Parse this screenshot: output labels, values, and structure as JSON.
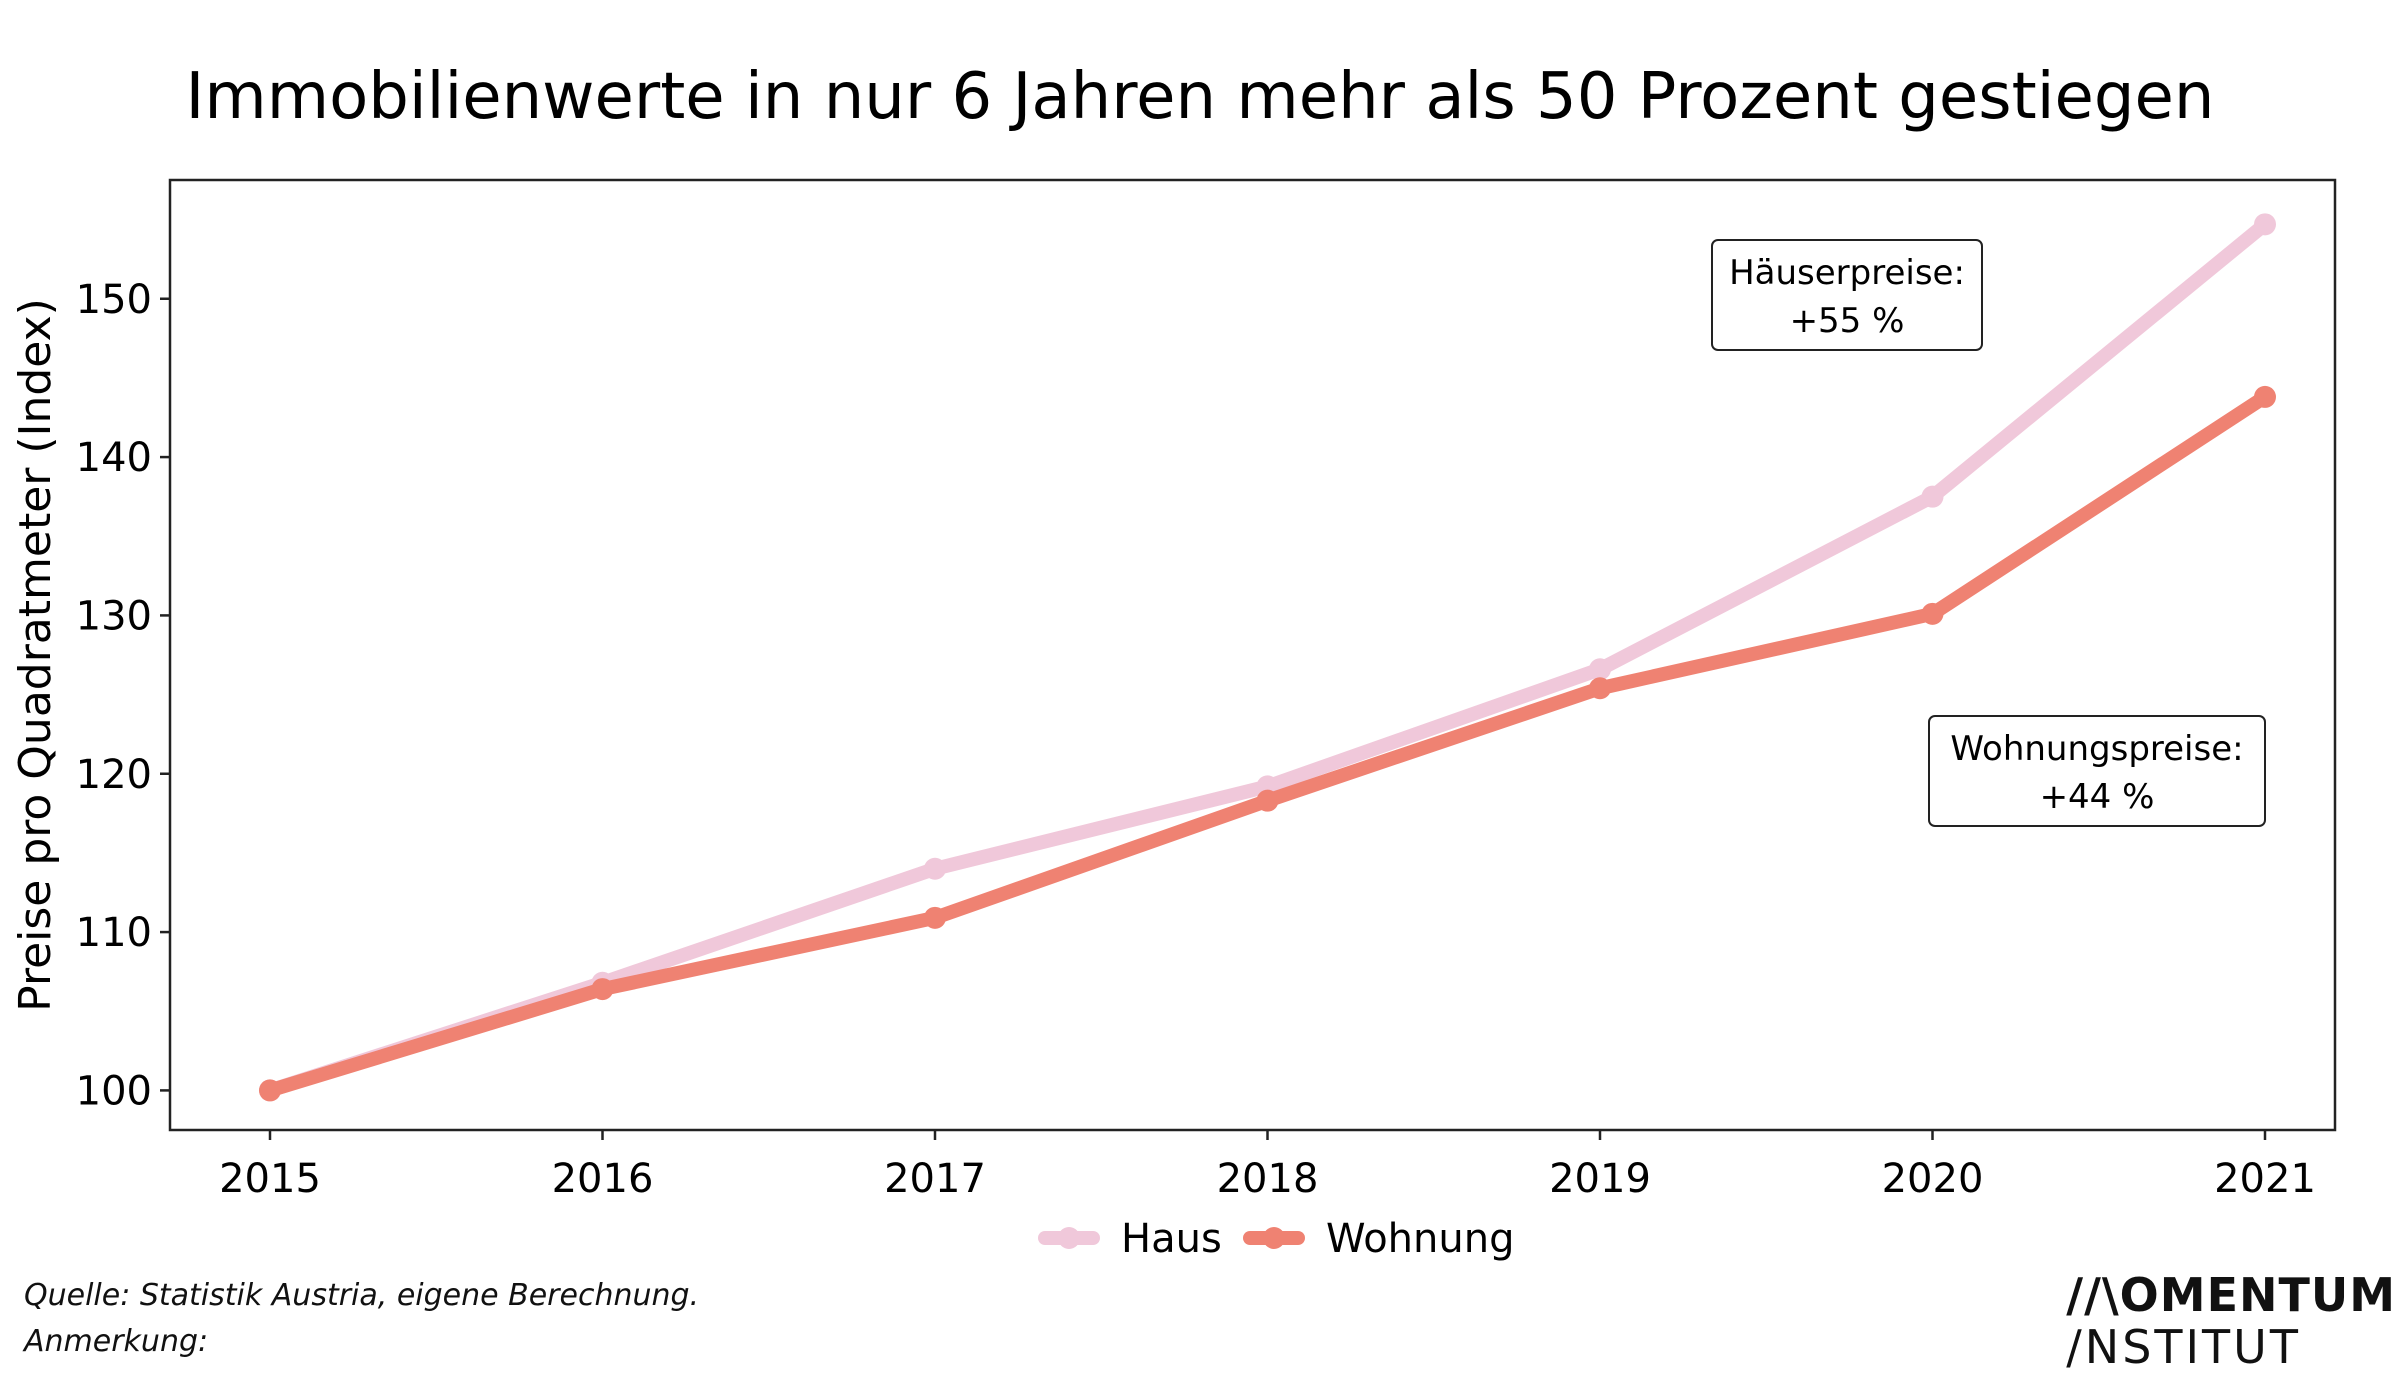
{
  "colors": {
    "haus": "#f0c8da",
    "wohnung": "#ef8272",
    "frame": "#222222",
    "background": "#ffffff"
  },
  "chart_data": {
    "type": "line",
    "title": "Immobilienwerte in nur 6 Jahren mehr als 50 Prozent gestiegen",
    "xlabel": "",
    "ylabel": "Preise pro Quadratmeter (Index)",
    "x": [
      "2015",
      "2016",
      "2017",
      "2018",
      "2019",
      "2020",
      "2021"
    ],
    "y_ticks": [
      100,
      110,
      120,
      130,
      140,
      150
    ],
    "ylim": [
      97.5,
      157.5
    ],
    "grid": false,
    "legend_position": "bottom-center",
    "series": [
      {
        "name": "Haus",
        "color": "#f0c8da",
        "values": [
          100,
          106.8,
          114.0,
          119.2,
          126.6,
          137.5,
          154.7
        ]
      },
      {
        "name": "Wohnung",
        "color": "#ef8272",
        "values": [
          100,
          106.4,
          110.9,
          118.3,
          125.4,
          130.1,
          143.8
        ]
      }
    ],
    "annotations": [
      {
        "lines": [
          "Häuserpreise:",
          "+55 %"
        ],
        "anchor_x": "2020",
        "anchor_y": 150.3
      },
      {
        "lines": [
          "Wohnungspreise:",
          "+44 %"
        ],
        "anchor_x": "2020.5",
        "anchor_y": 120.3
      }
    ]
  },
  "footer": {
    "source": "Quelle: Statistik Austria, eigene Berechnung.",
    "note": "Anmerkung:",
    "logo_line1": "//\\OMENTUM",
    "logo_line2": "/NSTITUT"
  }
}
